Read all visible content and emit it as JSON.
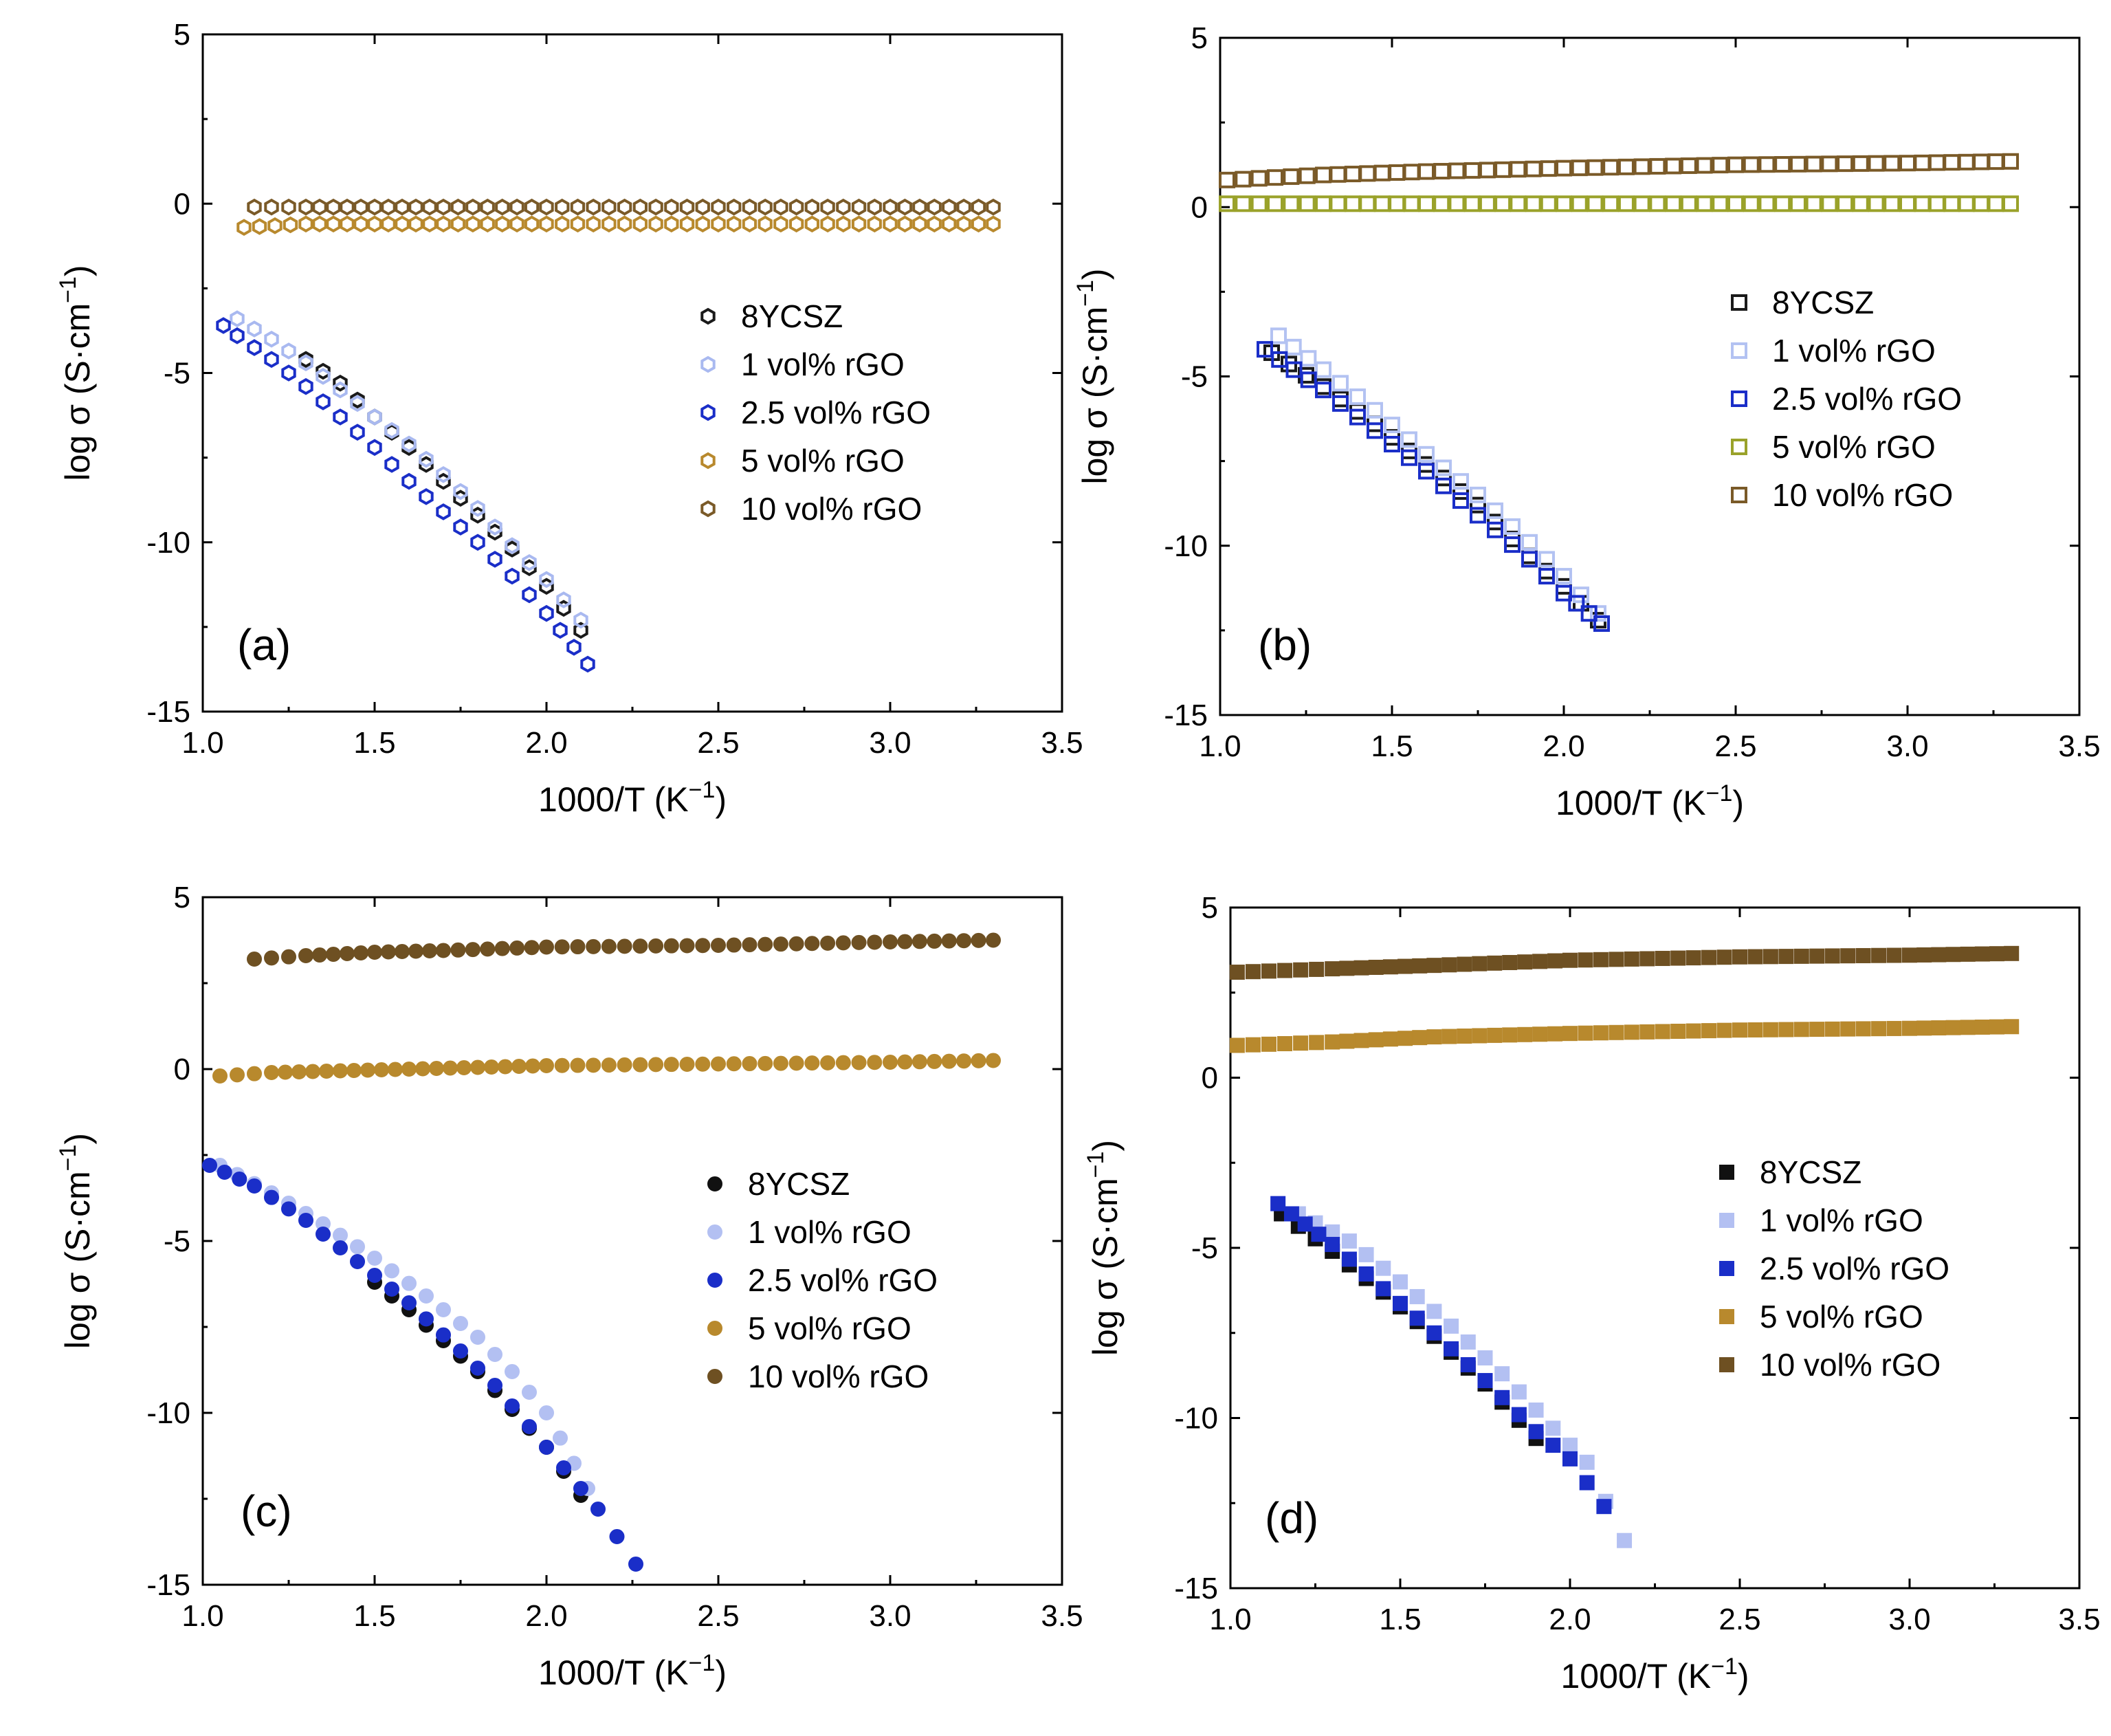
{
  "figure": {
    "axis_labels": {
      "x_main": "1000/T (K",
      "x_sup": "−1",
      "x_end": ")",
      "y_main": "log σ (S·cm",
      "y_sup": "−1",
      "y_end": ")"
    }
  },
  "chart_data": [
    {
      "id": "a",
      "type": "scatter",
      "marker": "hexagon",
      "filled": false,
      "panel_label": "(a)",
      "xlim": [
        1.0,
        3.5
      ],
      "ylim": [
        -15,
        5
      ],
      "xticks": [
        "1.0",
        "1.5",
        "2.0",
        "2.5",
        "3.0",
        "3.5"
      ],
      "yticks": [
        "5",
        "0",
        "-5",
        "-10",
        "-15"
      ],
      "legend_position": "center-right",
      "series": [
        {
          "name": "8YCSZ",
          "color": "#1a1a1a",
          "points": [
            [
              1.3,
              -4.6
            ],
            [
              1.4,
              -5.3
            ],
            [
              1.5,
              -6.3
            ],
            [
              1.6,
              -7.2
            ],
            [
              1.7,
              -8.2
            ],
            [
              1.8,
              -9.2
            ],
            [
              1.9,
              -10.2
            ],
            [
              2.0,
              -11.3
            ],
            [
              2.1,
              -12.6
            ]
          ]
        },
        {
          "name": "1 vol% rGO",
          "color": "#a9b9f0",
          "points": [
            [
              1.1,
              -3.4
            ],
            [
              1.2,
              -4.0
            ],
            [
              1.3,
              -4.7
            ],
            [
              1.4,
              -5.5
            ],
            [
              1.5,
              -6.3
            ],
            [
              1.6,
              -7.1
            ],
            [
              1.7,
              -8.0
            ],
            [
              1.8,
              -9.0
            ],
            [
              1.9,
              -10.1
            ],
            [
              2.0,
              -11.1
            ],
            [
              2.1,
              -12.3
            ]
          ]
        },
        {
          "name": "2.5 vol% rGO",
          "color": "#1a2ec8",
          "points": [
            [
              1.06,
              -3.6
            ],
            [
              1.1,
              -3.9
            ],
            [
              1.2,
              -4.6
            ],
            [
              1.3,
              -5.4
            ],
            [
              1.4,
              -6.3
            ],
            [
              1.5,
              -7.2
            ],
            [
              1.6,
              -8.2
            ],
            [
              1.7,
              -9.1
            ],
            [
              1.8,
              -10.0
            ],
            [
              1.9,
              -11.0
            ],
            [
              2.0,
              -12.1
            ],
            [
              2.12,
              -13.6
            ]
          ]
        },
        {
          "name": "5 vol% rGO",
          "color": "#b8892d",
          "points": [
            [
              1.12,
              -0.7
            ],
            [
              1.3,
              -0.6
            ],
            [
              1.5,
              -0.6
            ],
            [
              1.7,
              -0.6
            ],
            [
              2.0,
              -0.6
            ],
            [
              2.5,
              -0.6
            ],
            [
              3.0,
              -0.6
            ],
            [
              3.3,
              -0.6
            ]
          ]
        },
        {
          "name": "10 vol% rGO",
          "color": "#7a5a28",
          "points": [
            [
              1.15,
              -0.1
            ],
            [
              1.3,
              -0.1
            ],
            [
              1.5,
              -0.1
            ],
            [
              1.7,
              -0.1
            ],
            [
              2.0,
              -0.1
            ],
            [
              2.5,
              -0.1
            ],
            [
              3.0,
              -0.1
            ],
            [
              3.3,
              -0.1
            ]
          ]
        }
      ]
    },
    {
      "id": "b",
      "type": "scatter",
      "marker": "square",
      "filled": false,
      "panel_label": "(b)",
      "xlim": [
        1.0,
        3.5
      ],
      "ylim": [
        -15,
        5
      ],
      "xticks": [
        "1.0",
        "1.5",
        "2.0",
        "2.5",
        "3.0",
        "3.5"
      ],
      "yticks": [
        "5",
        "0",
        "-5",
        "-10",
        "-15"
      ],
      "legend_position": "center-right",
      "series": [
        {
          "name": "8YCSZ",
          "color": "#1a1a1a",
          "points": [
            [
              1.15,
              -4.3
            ],
            [
              1.3,
              -5.3
            ],
            [
              1.45,
              -6.4
            ],
            [
              1.6,
              -7.6
            ],
            [
              1.75,
              -8.8
            ],
            [
              1.9,
              -10.3
            ],
            [
              2.0,
              -11.2
            ],
            [
              2.1,
              -12.2
            ]
          ]
        },
        {
          "name": "1 vol% rGO",
          "color": "#b3c2f2",
          "points": [
            [
              1.17,
              -3.8
            ],
            [
              1.3,
              -4.8
            ],
            [
              1.45,
              -6.0
            ],
            [
              1.6,
              -7.3
            ],
            [
              1.75,
              -8.5
            ],
            [
              1.9,
              -9.9
            ],
            [
              2.0,
              -10.9
            ],
            [
              2.1,
              -12.0
            ]
          ]
        },
        {
          "name": "2.5 vol% rGO",
          "color": "#1a2ec8",
          "points": [
            [
              1.13,
              -4.2
            ],
            [
              1.3,
              -5.4
            ],
            [
              1.45,
              -6.6
            ],
            [
              1.6,
              -7.8
            ],
            [
              1.75,
              -9.1
            ],
            [
              1.9,
              -10.4
            ],
            [
              2.0,
              -11.4
            ],
            [
              2.11,
              -12.3
            ]
          ]
        },
        {
          "name": "5 vol% rGO",
          "color": "#9aa22a",
          "points": [
            [
              1.02,
              0.1
            ],
            [
              1.3,
              0.1
            ],
            [
              1.6,
              0.1
            ],
            [
              2.0,
              0.1
            ],
            [
              2.5,
              0.1
            ],
            [
              3.0,
              0.1
            ],
            [
              3.3,
              0.1
            ]
          ]
        },
        {
          "name": "10 vol% rGO",
          "color": "#7a5a28",
          "points": [
            [
              1.02,
              0.8
            ],
            [
              1.3,
              0.95
            ],
            [
              1.6,
              1.05
            ],
            [
              2.0,
              1.15
            ],
            [
              2.5,
              1.25
            ],
            [
              3.0,
              1.3
            ],
            [
              3.3,
              1.35
            ]
          ]
        }
      ]
    },
    {
      "id": "c",
      "type": "scatter",
      "marker": "circle",
      "filled": true,
      "panel_label": "(c)",
      "xlim": [
        1.0,
        3.5
      ],
      "ylim": [
        -15,
        5
      ],
      "xticks": [
        "1.0",
        "1.5",
        "2.0",
        "2.5",
        "3.0",
        "3.5"
      ],
      "yticks": [
        "5",
        "0",
        "-5",
        "-10",
        "-15"
      ],
      "legend_position": "center-right",
      "series": [
        {
          "name": "8YCSZ",
          "color": "#111111",
          "points": [
            [
              1.5,
              -6.2
            ],
            [
              1.6,
              -7.0
            ],
            [
              1.7,
              -7.9
            ],
            [
              1.8,
              -8.8
            ],
            [
              1.9,
              -9.9
            ],
            [
              2.0,
              -11.0
            ],
            [
              2.1,
              -12.4
            ]
          ]
        },
        {
          "name": "1 vol% rGO",
          "color": "#b3c0f2",
          "points": [
            [
              1.05,
              -2.8
            ],
            [
              1.2,
              -3.6
            ],
            [
              1.35,
              -4.5
            ],
            [
              1.5,
              -5.5
            ],
            [
              1.65,
              -6.6
            ],
            [
              1.8,
              -7.8
            ],
            [
              1.9,
              -8.8
            ],
            [
              2.0,
              -10.0
            ],
            [
              2.12,
              -12.2
            ]
          ]
        },
        {
          "name": "2.5 vol% rGO",
          "color": "#1a2ec8",
          "points": [
            [
              1.02,
              -2.8
            ],
            [
              1.15,
              -3.4
            ],
            [
              1.3,
              -4.4
            ],
            [
              1.45,
              -5.6
            ],
            [
              1.6,
              -6.8
            ],
            [
              1.75,
              -8.2
            ],
            [
              1.85,
              -9.2
            ],
            [
              1.95,
              -10.4
            ],
            [
              2.05,
              -11.6
            ],
            [
              2.15,
              -12.8
            ],
            [
              2.26,
              -14.4
            ]
          ]
        },
        {
          "name": "5 vol% rGO",
          "color": "#b8892d",
          "points": [
            [
              1.05,
              -0.2
            ],
            [
              1.2,
              -0.1
            ],
            [
              1.4,
              -0.05
            ],
            [
              1.6,
              0.0
            ],
            [
              1.8,
              0.05
            ],
            [
              2.0,
              0.1
            ],
            [
              2.5,
              0.15
            ],
            [
              3.0,
              0.2
            ],
            [
              3.3,
              0.25
            ]
          ]
        },
        {
          "name": "10 vol% rGO",
          "color": "#6e5022",
          "points": [
            [
              1.15,
              3.2
            ],
            [
              1.3,
              3.3
            ],
            [
              1.5,
              3.4
            ],
            [
              1.7,
              3.45
            ],
            [
              2.0,
              3.55
            ],
            [
              2.5,
              3.6
            ],
            [
              3.0,
              3.7
            ],
            [
              3.3,
              3.75
            ]
          ]
        }
      ]
    },
    {
      "id": "d",
      "type": "scatter",
      "marker": "square",
      "filled": true,
      "panel_label": "(d)",
      "xlim": [
        1.0,
        3.5
      ],
      "ylim": [
        -15,
        5
      ],
      "xticks": [
        "1.0",
        "1.5",
        "2.0",
        "2.5",
        "3.0",
        "3.5"
      ],
      "yticks": [
        "5",
        "0",
        "-5",
        "-10",
        "-15"
      ],
      "legend_position": "center-right",
      "series": [
        {
          "name": "8YCSZ",
          "color": "#111111",
          "points": [
            [
              1.15,
              -4.0
            ],
            [
              1.3,
              -5.1
            ],
            [
              1.45,
              -6.3
            ],
            [
              1.6,
              -7.6
            ],
            [
              1.75,
              -9.0
            ],
            [
              1.9,
              -10.6
            ]
          ]
        },
        {
          "name": "1 vol% rGO",
          "color": "#b3c0f2",
          "points": [
            [
              1.2,
              -4.0
            ],
            [
              1.35,
              -4.8
            ],
            [
              1.5,
              -6.0
            ],
            [
              1.65,
              -7.3
            ],
            [
              1.8,
              -8.7
            ],
            [
              1.95,
              -10.3
            ],
            [
              2.05,
              -11.3
            ],
            [
              2.16,
              -13.6
            ]
          ]
        },
        {
          "name": "2.5 vol% rGO",
          "color": "#1a2ec8",
          "points": [
            [
              1.14,
              -3.7
            ],
            [
              1.3,
              -4.9
            ],
            [
              1.45,
              -6.2
            ],
            [
              1.6,
              -7.5
            ],
            [
              1.75,
              -8.9
            ],
            [
              1.9,
              -10.4
            ],
            [
              2.0,
              -11.2
            ],
            [
              2.1,
              -12.6
            ]
          ]
        },
        {
          "name": "5 vol% rGO",
          "color": "#b8892d",
          "points": [
            [
              1.02,
              0.95
            ],
            [
              1.3,
              1.05
            ],
            [
              1.6,
              1.2
            ],
            [
              2.0,
              1.3
            ],
            [
              2.5,
              1.4
            ],
            [
              3.0,
              1.45
            ],
            [
              3.3,
              1.5
            ]
          ]
        },
        {
          "name": "10 vol% rGO",
          "color": "#6e5022",
          "points": [
            [
              1.02,
              3.1
            ],
            [
              1.3,
              3.2
            ],
            [
              1.6,
              3.3
            ],
            [
              2.0,
              3.45
            ],
            [
              2.5,
              3.55
            ],
            [
              3.0,
              3.6
            ],
            [
              3.3,
              3.65
            ]
          ]
        }
      ]
    }
  ]
}
